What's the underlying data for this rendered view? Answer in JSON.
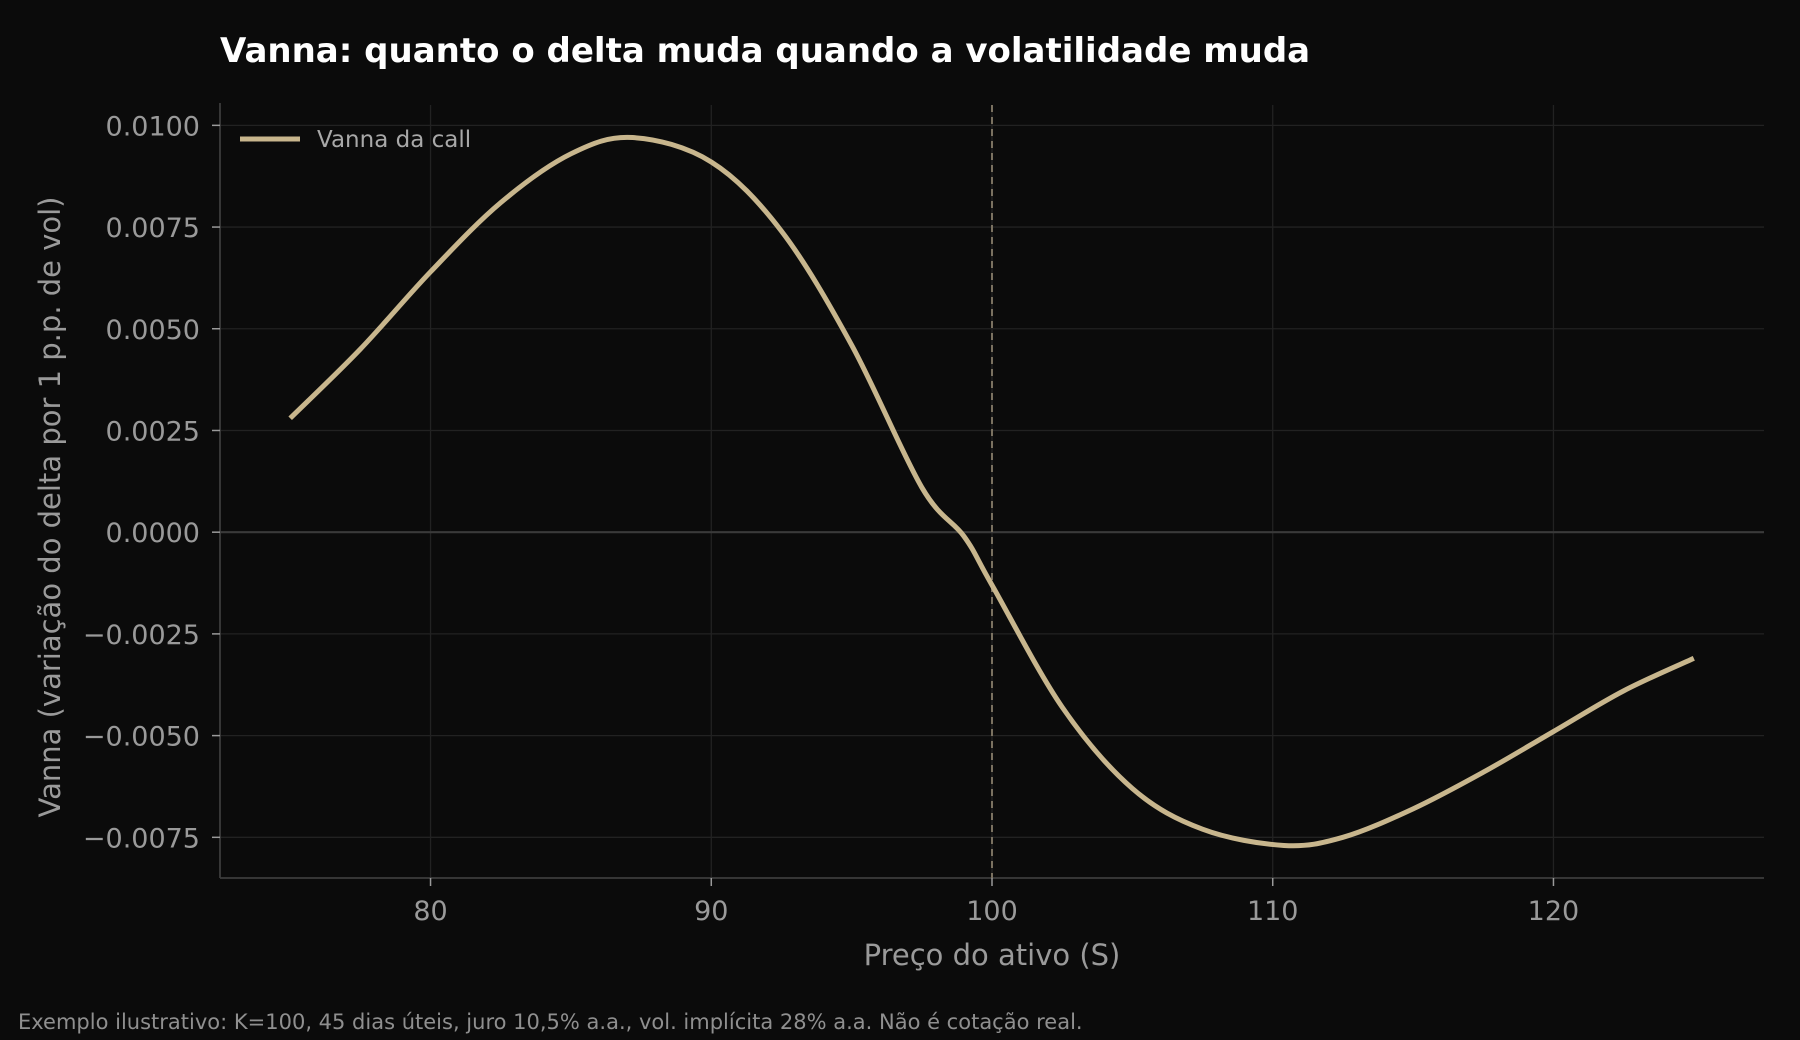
{
  "chart_data": {
    "type": "line",
    "title": "Vanna: quanto o delta muda quando a volatilidade muda",
    "xlabel": "Preço do ativo (S)",
    "ylabel": "Vanna (variação do delta por 1 p.p. de vol)",
    "footnote": "Exemplo ilustrativo: K=100, 45 dias úteis, juro 10,5% a.a., vol. implícita 28% a.a. Não é cotação real.",
    "xlim": [
      72.5,
      127.5
    ],
    "ylim": [
      -0.0085,
      0.0105
    ],
    "x_ticks": [
      80,
      90,
      100,
      110,
      120
    ],
    "x_tick_labels": [
      "80",
      "90",
      "100",
      "110",
      "120"
    ],
    "y_ticks": [
      0.01,
      0.0075,
      0.005,
      0.0025,
      0.0,
      -0.0025,
      -0.005,
      -0.0075
    ],
    "y_tick_labels": [
      "0.0100",
      "0.0075",
      "0.0050",
      "0.0025",
      "0.0000",
      "−0.0025",
      "−0.0050",
      "−0.0075"
    ],
    "grid": true,
    "legend_position": "top-left",
    "reference_line": {
      "x": 100,
      "style": "dashed",
      "color": "#7a7160"
    },
    "zero_line": true,
    "series": [
      {
        "name": "Vanna da call",
        "color": "#c8b68d",
        "x": [
          75,
          77.5,
          80,
          82.5,
          85,
          87.2,
          90,
          92.5,
          95,
          97.5,
          99,
          100,
          102.5,
          105,
          107.5,
          110.4,
          112.5,
          115,
          117.5,
          120,
          122.5,
          125
        ],
        "y": [
          0.0028,
          0.0045,
          0.0064,
          0.0081,
          0.0093,
          0.0097,
          0.0091,
          0.0074,
          0.0046,
          0.0011,
          -0.0001,
          -0.0013,
          -0.0043,
          -0.0063,
          -0.0073,
          -0.0077,
          -0.0075,
          -0.0068,
          -0.0059,
          -0.0049,
          -0.0039,
          -0.0031
        ]
      }
    ]
  }
}
